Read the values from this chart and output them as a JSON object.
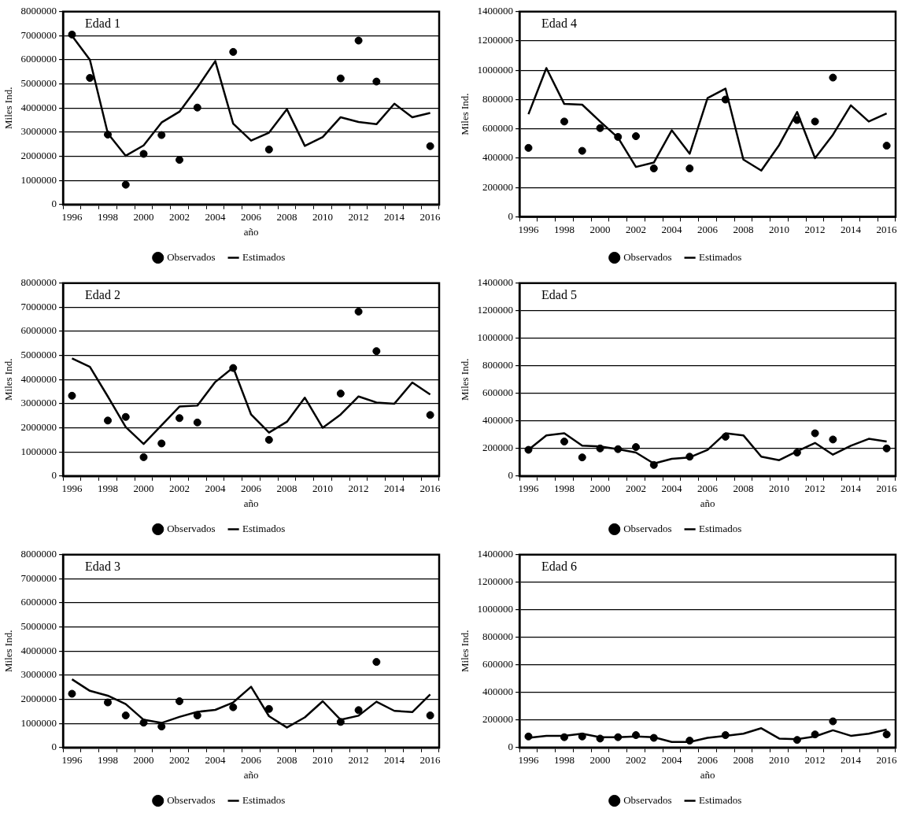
{
  "chart_data": [
    {
      "type": "line",
      "title": "Edad 1",
      "xlabel": "año",
      "ylabel": "Miles Ind.",
      "categories": [
        "1996",
        null,
        "1998",
        null,
        "2000",
        null,
        "2002",
        null,
        "2004",
        null,
        "2006",
        null,
        "2008",
        null,
        "2010",
        null,
        "2012",
        null,
        "2014",
        null,
        "2016"
      ],
      "ylim": [
        0,
        8000000
      ],
      "yticks": [
        0,
        1000000,
        2000000,
        3000000,
        4000000,
        5000000,
        6000000,
        7000000,
        8000000
      ],
      "grid": "y",
      "legend": "bottom",
      "series": [
        {
          "name": "Observados",
          "type": "scatter",
          "marker": "circle",
          "color": "#000000",
          "values": [
            7050000,
            5250000,
            2900000,
            820000,
            2100000,
            2880000,
            1850000,
            4020000,
            null,
            6330000,
            null,
            2280000,
            null,
            null,
            null,
            5230000,
            6800000,
            5100000,
            null,
            null,
            2420000
          ]
        },
        {
          "name": "Estimados",
          "type": "line",
          "marker": "none",
          "color": "#000000",
          "values": [
            7000000,
            6000000,
            2950000,
            2020000,
            2450000,
            3400000,
            3850000,
            4850000,
            5950000,
            3350000,
            2650000,
            2980000,
            3950000,
            2430000,
            2800000,
            3620000,
            3420000,
            3330000,
            4180000,
            3620000,
            3800000
          ]
        }
      ]
    },
    {
      "type": "line",
      "title": "Edad 4",
      "ylabel": "Miles Ind.",
      "categories": [
        "1996",
        null,
        "1998",
        null,
        "2000",
        null,
        "2002",
        null,
        "2004",
        null,
        "2006",
        null,
        "2008",
        null,
        "2010",
        null,
        "2012",
        null,
        "2014",
        null,
        "2016"
      ],
      "ylim": [
        0,
        1400000
      ],
      "yticks": [
        0,
        200000,
        400000,
        600000,
        800000,
        1000000,
        1200000,
        1400000
      ],
      "grid": "y",
      "legend": "bottom",
      "series": [
        {
          "name": "Observados",
          "type": "scatter",
          "marker": "circle",
          "color": "#000000",
          "values": [
            470000,
            null,
            650000,
            450000,
            605000,
            545000,
            550000,
            330000,
            null,
            330000,
            null,
            800000,
            null,
            null,
            null,
            660000,
            650000,
            950000,
            null,
            null,
            485000
          ]
        },
        {
          "name": "Estimados",
          "type": "line",
          "marker": "none",
          "color": "#000000",
          "values": [
            700000,
            1015000,
            770000,
            765000,
            650000,
            540000,
            340000,
            370000,
            590000,
            430000,
            810000,
            875000,
            390000,
            315000,
            490000,
            715000,
            400000,
            560000,
            760000,
            650000,
            705000
          ]
        }
      ]
    },
    {
      "type": "line",
      "title": "Edad 2",
      "xlabel": "año",
      "ylabel": "Miles Ind.",
      "categories": [
        "1996",
        null,
        "1998",
        null,
        "2000",
        null,
        "2002",
        null,
        "2004",
        null,
        "2006",
        null,
        "2008",
        null,
        "2010",
        null,
        "2012",
        null,
        "2014",
        null,
        "2016"
      ],
      "ylim": [
        0,
        8000000
      ],
      "yticks": [
        0,
        1000000,
        2000000,
        3000000,
        4000000,
        5000000,
        6000000,
        7000000,
        8000000
      ],
      "grid": "y",
      "legend": "bottom",
      "series": [
        {
          "name": "Observados",
          "type": "scatter",
          "marker": "circle",
          "color": "#000000",
          "values": [
            3330000,
            null,
            2300000,
            2450000,
            780000,
            1350000,
            2400000,
            2220000,
            null,
            4480000,
            null,
            1500000,
            null,
            null,
            null,
            3420000,
            6820000,
            5180000,
            null,
            null,
            2530000
          ]
        },
        {
          "name": "Estimados",
          "type": "line",
          "marker": "none",
          "color": "#000000",
          "values": [
            4880000,
            4530000,
            3300000,
            2030000,
            1330000,
            2100000,
            2880000,
            2920000,
            3900000,
            4500000,
            2550000,
            1800000,
            2250000,
            3250000,
            2000000,
            2550000,
            3300000,
            3050000,
            3000000,
            3880000,
            3380000
          ]
        }
      ]
    },
    {
      "type": "line",
      "title": "Edad 5",
      "xlabel": "año",
      "ylabel": "Miles Ind.",
      "categories": [
        "1996",
        null,
        "1998",
        null,
        "2000",
        null,
        "2002",
        null,
        "2004",
        null,
        "2006",
        null,
        "2008",
        null,
        "2010",
        null,
        "2012",
        null,
        "2014",
        null,
        "2016"
      ],
      "ylim": [
        0,
        1400000
      ],
      "yticks": [
        0,
        200000,
        400000,
        600000,
        800000,
        1000000,
        1200000,
        1400000
      ],
      "grid": "y",
      "legend": "bottom",
      "series": [
        {
          "name": "Observados",
          "type": "scatter",
          "marker": "circle",
          "color": "#000000",
          "values": [
            190000,
            null,
            250000,
            135000,
            200000,
            195000,
            210000,
            80000,
            null,
            140000,
            null,
            285000,
            null,
            null,
            null,
            170000,
            310000,
            265000,
            null,
            null,
            200000
          ]
        },
        {
          "name": "Estimados",
          "type": "line",
          "marker": "none",
          "color": "#000000",
          "values": [
            190000,
            295000,
            310000,
            220000,
            215000,
            195000,
            170000,
            90000,
            125000,
            135000,
            190000,
            310000,
            295000,
            140000,
            115000,
            180000,
            240000,
            155000,
            220000,
            270000,
            250000
          ]
        }
      ]
    },
    {
      "type": "line",
      "title": "Edad 3",
      "xlabel": "año",
      "ylabel": "Miles Ind.",
      "categories": [
        "1996",
        null,
        "1998",
        null,
        "2000",
        null,
        "2002",
        null,
        "2004",
        null,
        "2006",
        null,
        "2008",
        null,
        "2010",
        null,
        "2012",
        null,
        "2014",
        null,
        "2016"
      ],
      "ylim": [
        0,
        8000000
      ],
      "yticks": [
        0,
        1000000,
        2000000,
        3000000,
        4000000,
        5000000,
        6000000,
        7000000,
        8000000
      ],
      "grid": "y",
      "legend": "bottom",
      "series": [
        {
          "name": "Observados",
          "type": "scatter",
          "marker": "circle",
          "color": "#000000",
          "values": [
            2230000,
            null,
            1870000,
            1330000,
            1030000,
            870000,
            1920000,
            1330000,
            null,
            1670000,
            null,
            1600000,
            null,
            null,
            null,
            1060000,
            1550000,
            3550000,
            null,
            null,
            1330000
          ]
        },
        {
          "name": "Estimados",
          "type": "line",
          "marker": "none",
          "color": "#000000",
          "values": [
            2830000,
            2350000,
            2150000,
            1800000,
            1150000,
            1020000,
            1270000,
            1480000,
            1560000,
            1870000,
            2520000,
            1300000,
            830000,
            1250000,
            1920000,
            1150000,
            1320000,
            1900000,
            1520000,
            1470000,
            2200000
          ]
        }
      ]
    },
    {
      "type": "line",
      "title": "Edad 6",
      "xlabel": "año",
      "ylabel": "Miles Ind.",
      "categories": [
        "1996",
        null,
        "1998",
        null,
        "2000",
        null,
        "2002",
        null,
        "2004",
        null,
        "2006",
        null,
        "2008",
        null,
        "2010",
        null,
        "2012",
        null,
        "2014",
        null,
        "2016"
      ],
      "ylim": [
        0,
        1400000
      ],
      "yticks": [
        0,
        200000,
        400000,
        600000,
        800000,
        1000000,
        1200000,
        1400000
      ],
      "grid": "y",
      "legend": "bottom",
      "series": [
        {
          "name": "Observados",
          "type": "scatter",
          "marker": "circle",
          "color": "#000000",
          "values": [
            80000,
            null,
            75000,
            80000,
            65000,
            75000,
            90000,
            70000,
            null,
            50000,
            null,
            90000,
            null,
            null,
            null,
            55000,
            95000,
            190000,
            null,
            null,
            95000
          ]
        },
        {
          "name": "Estimados",
          "type": "line",
          "marker": "none",
          "color": "#000000",
          "values": [
            70000,
            85000,
            85000,
            100000,
            75000,
            75000,
            80000,
            75000,
            40000,
            40000,
            70000,
            85000,
            100000,
            140000,
            65000,
            60000,
            80000,
            125000,
            85000,
            100000,
            130000
          ]
        }
      ]
    }
  ]
}
